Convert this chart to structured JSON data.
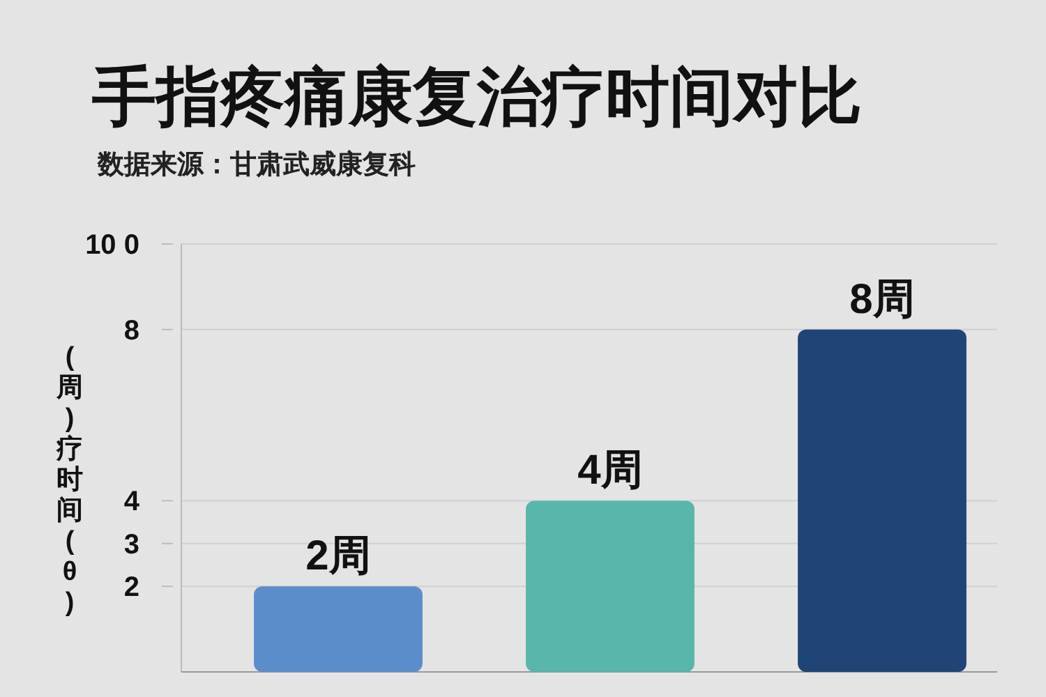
{
  "chart_data": {
    "type": "bar",
    "title": "手指疼痛康复治疗时间对比",
    "subtitle": "数据来源：甘肃武威康复科",
    "ylabel": "(周)疗时间(θ)",
    "categories": [
      null,
      null,
      null
    ],
    "series": [
      {
        "colors": [
          "#5b8dcb",
          "#58b6ab",
          "#1f4577"
        ],
        "values": [
          2,
          4,
          8
        ],
        "value_labels": [
          "2周",
          "4周",
          "8周"
        ]
      }
    ],
    "ylim": [
      0,
      10
    ],
    "yticks": [
      2,
      3,
      4,
      8,
      {
        "value": 10,
        "label": "10 0"
      }
    ],
    "grid": "y"
  }
}
